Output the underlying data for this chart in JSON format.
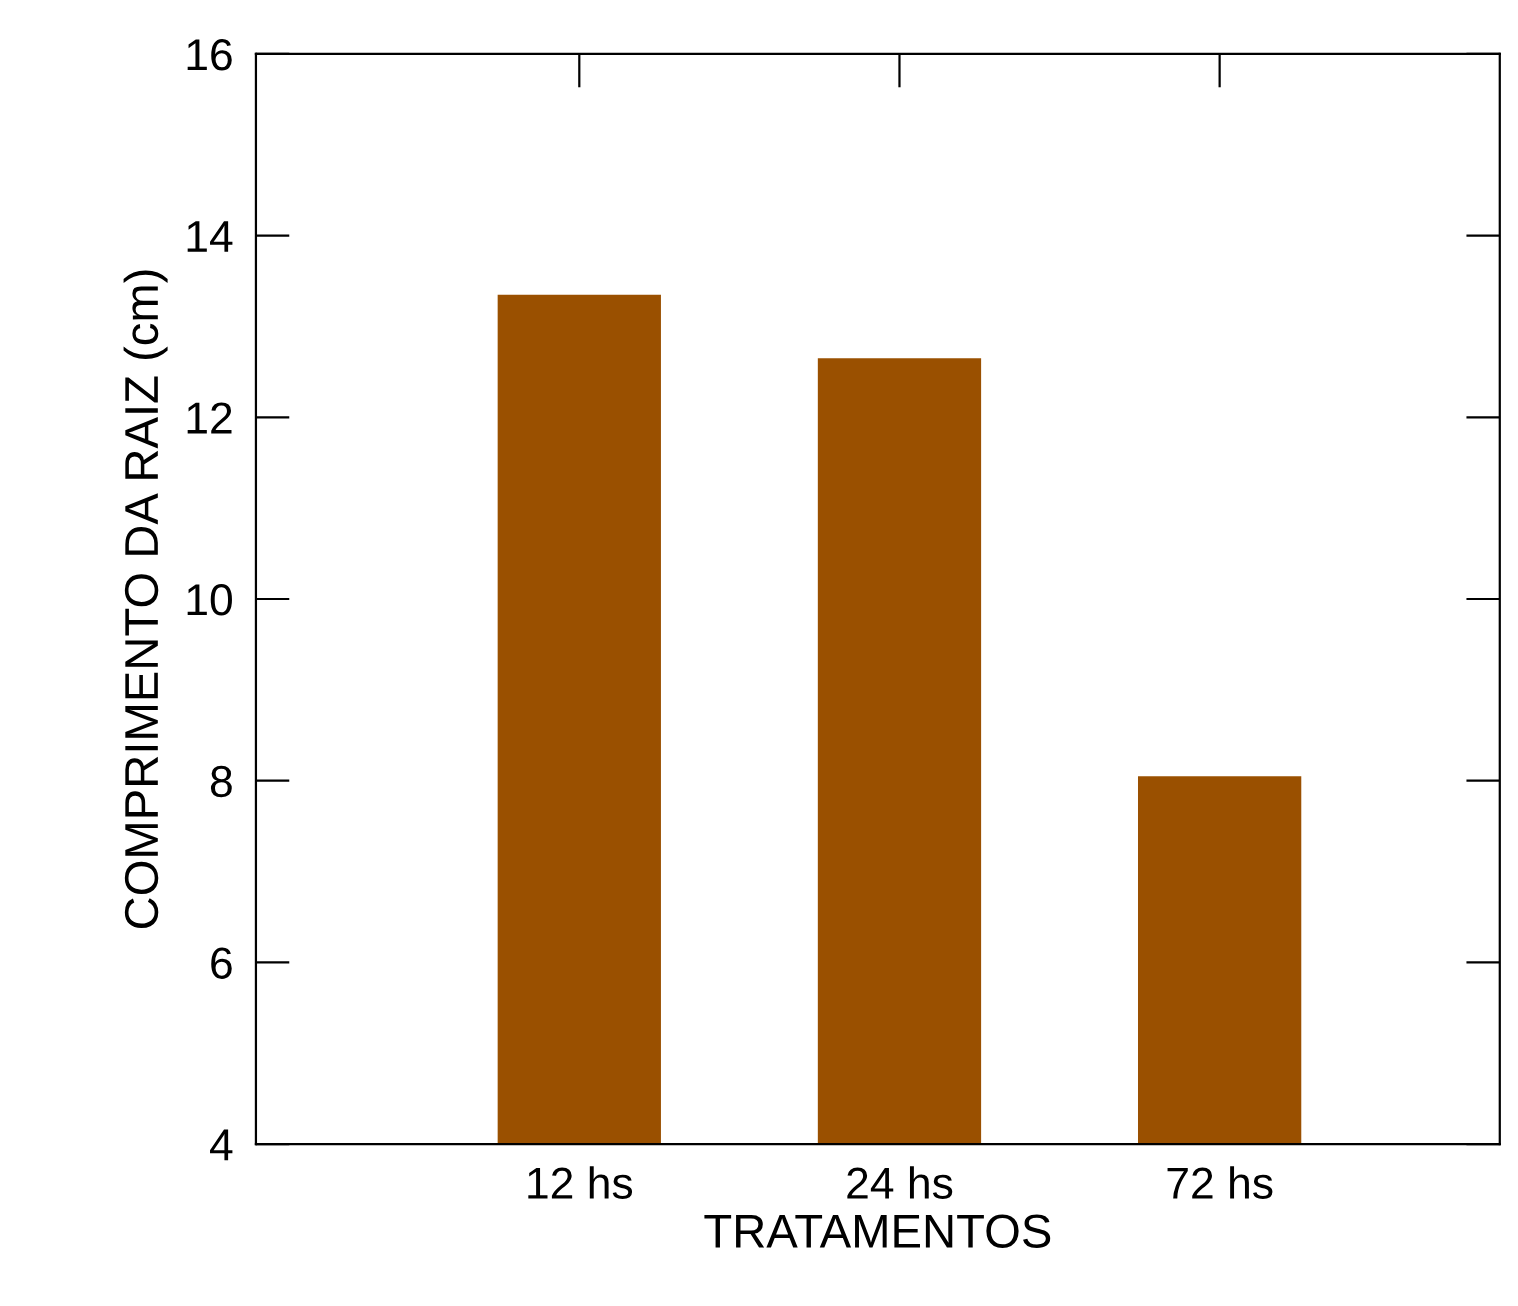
{
  "chart_data": {
    "type": "bar",
    "xlabel": "TRATAMENTOS",
    "ylabel": "COMPRIMENTO DA RAIZ (cm)",
    "categories": [
      "12 hs",
      "24 hs",
      "72 hs"
    ],
    "values": [
      13.35,
      12.65,
      8.05
    ],
    "color": "#9a5000",
    "ylim": [
      4,
      16
    ],
    "yticks": [
      4,
      6,
      8,
      10,
      12,
      14,
      16
    ],
    "grid": false,
    "legend": false
  }
}
